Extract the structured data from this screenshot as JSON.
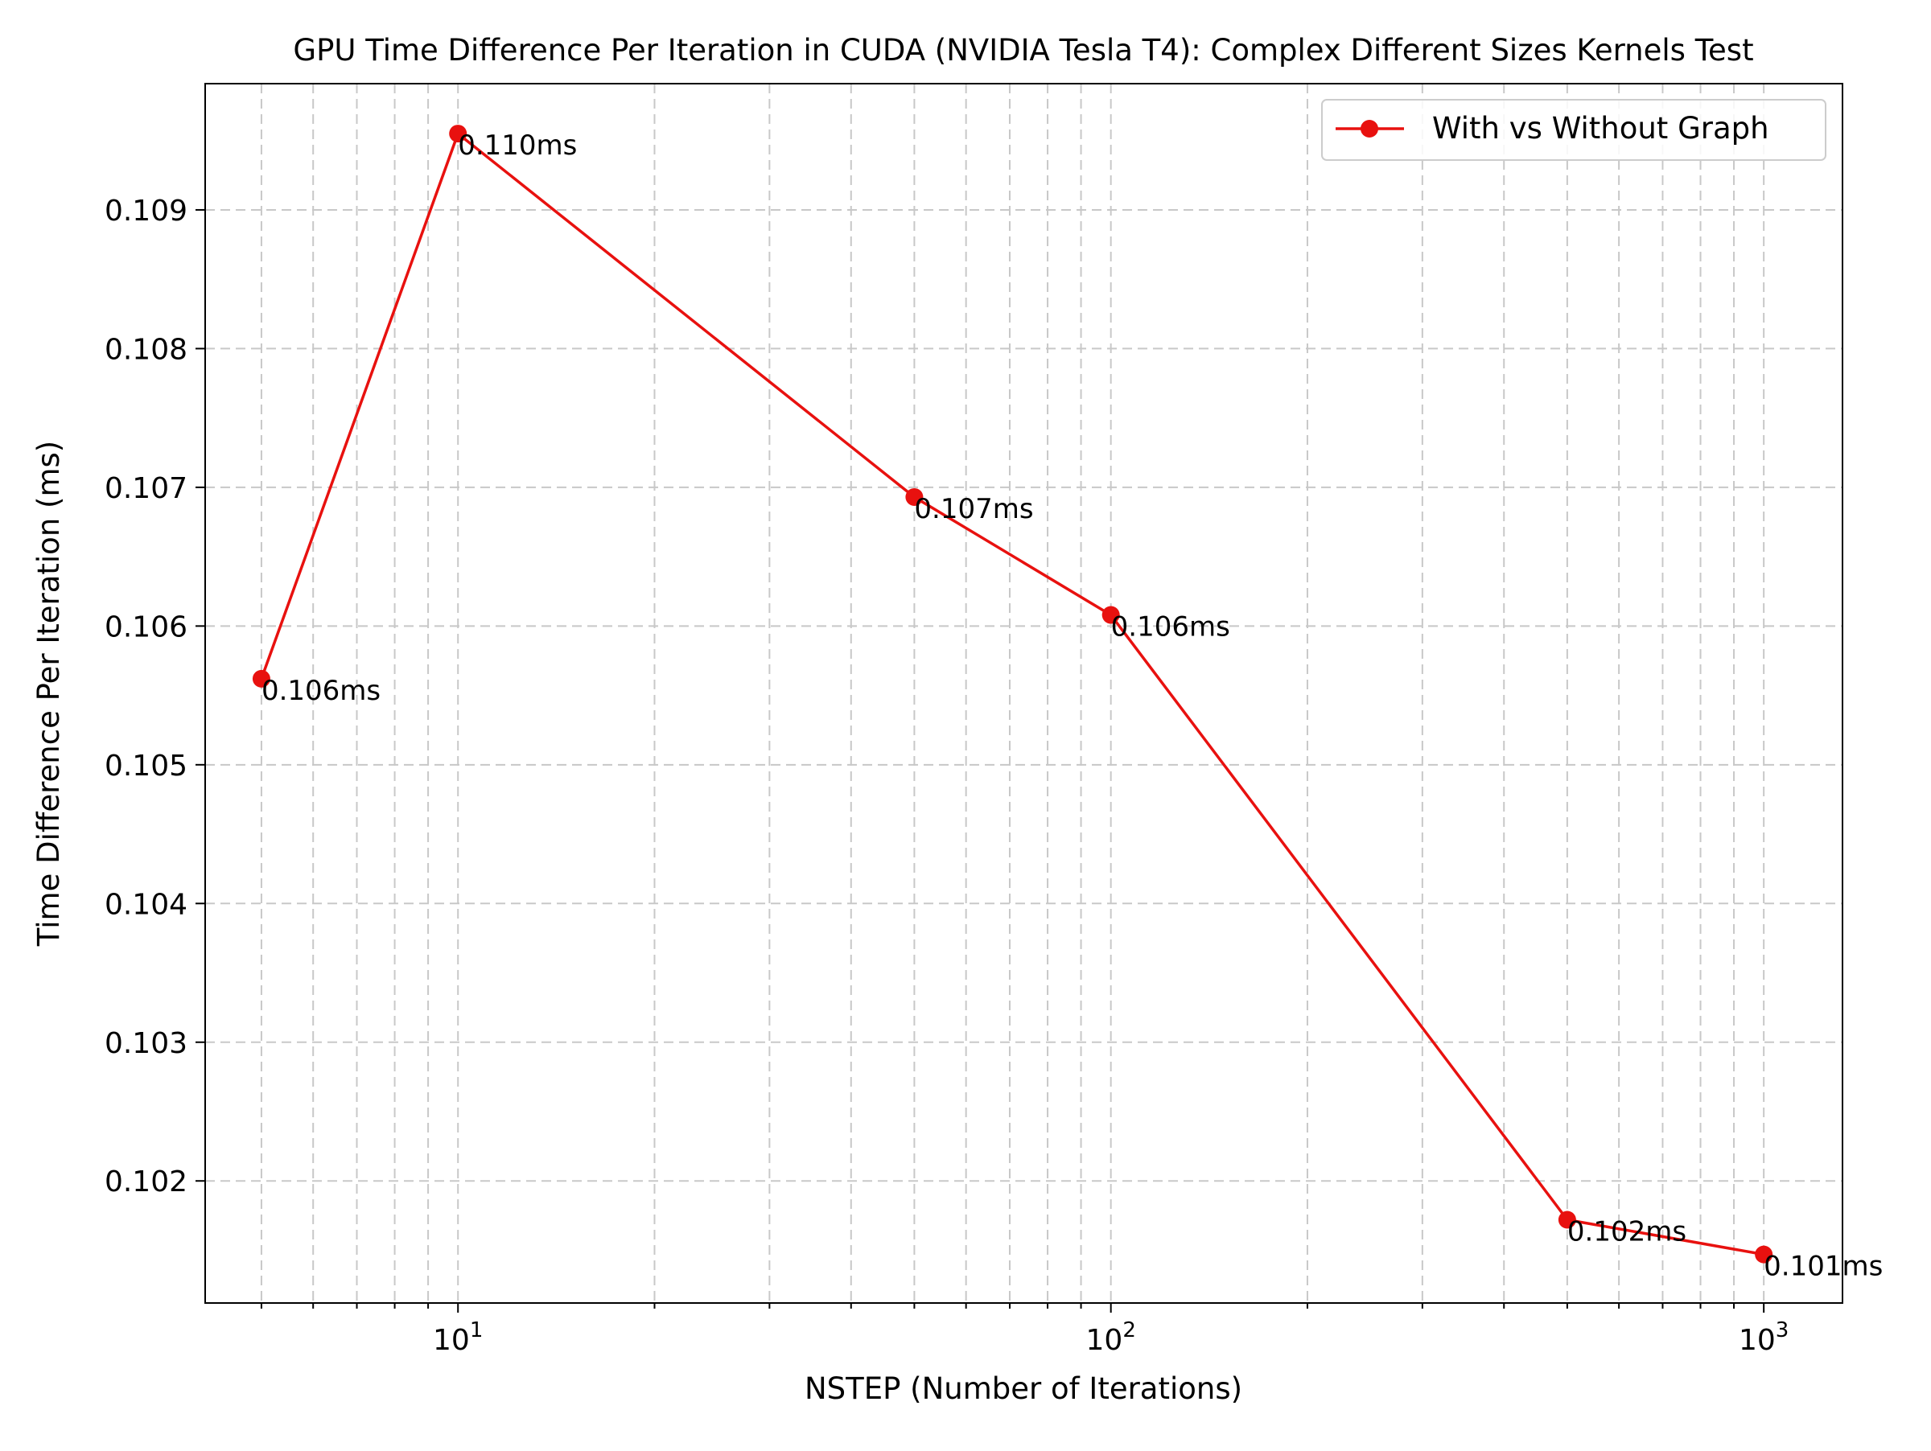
{
  "chart_data": {
    "type": "line",
    "title": "GPU Time Difference Per Iteration in CUDA (NVIDIA Tesla T4): Complex Different Sizes Kernels Test",
    "xlabel": "NSTEP (Number of Iterations)",
    "ylabel": "Time Difference Per Iteration (ms)",
    "xscale": "log",
    "xlim": [
      4.1,
      1320
    ],
    "ylim": [
      0.10112,
      0.10991
    ],
    "x_ticks": [
      {
        "value": 10,
        "base": "10",
        "exp": "1"
      },
      {
        "value": 100,
        "base": "10",
        "exp": "2"
      },
      {
        "value": 1000,
        "base": "10",
        "exp": "3"
      }
    ],
    "y_ticks": [
      {
        "value": 0.102,
        "label": "0.102"
      },
      {
        "value": 0.103,
        "label": "0.103"
      },
      {
        "value": 0.104,
        "label": "0.104"
      },
      {
        "value": 0.105,
        "label": "0.105"
      },
      {
        "value": 0.106,
        "label": "0.106"
      },
      {
        "value": 0.107,
        "label": "0.107"
      },
      {
        "value": 0.108,
        "label": "0.108"
      },
      {
        "value": 0.109,
        "label": "0.109"
      }
    ],
    "grid": "both (major and minor, dashed)",
    "legend_position": "top-right",
    "series": [
      {
        "name": "With vs Without Graph",
        "color": "#e8110f",
        "marker": "circle",
        "x": [
          5,
          10,
          50,
          100,
          500,
          1000
        ],
        "y": [
          0.10562,
          0.10955,
          0.10693,
          0.10608,
          0.10172,
          0.10147
        ],
        "labels": [
          "0.106ms",
          "0.110ms",
          "0.107ms",
          "0.106ms",
          "0.102ms",
          "0.101ms"
        ]
      }
    ]
  }
}
